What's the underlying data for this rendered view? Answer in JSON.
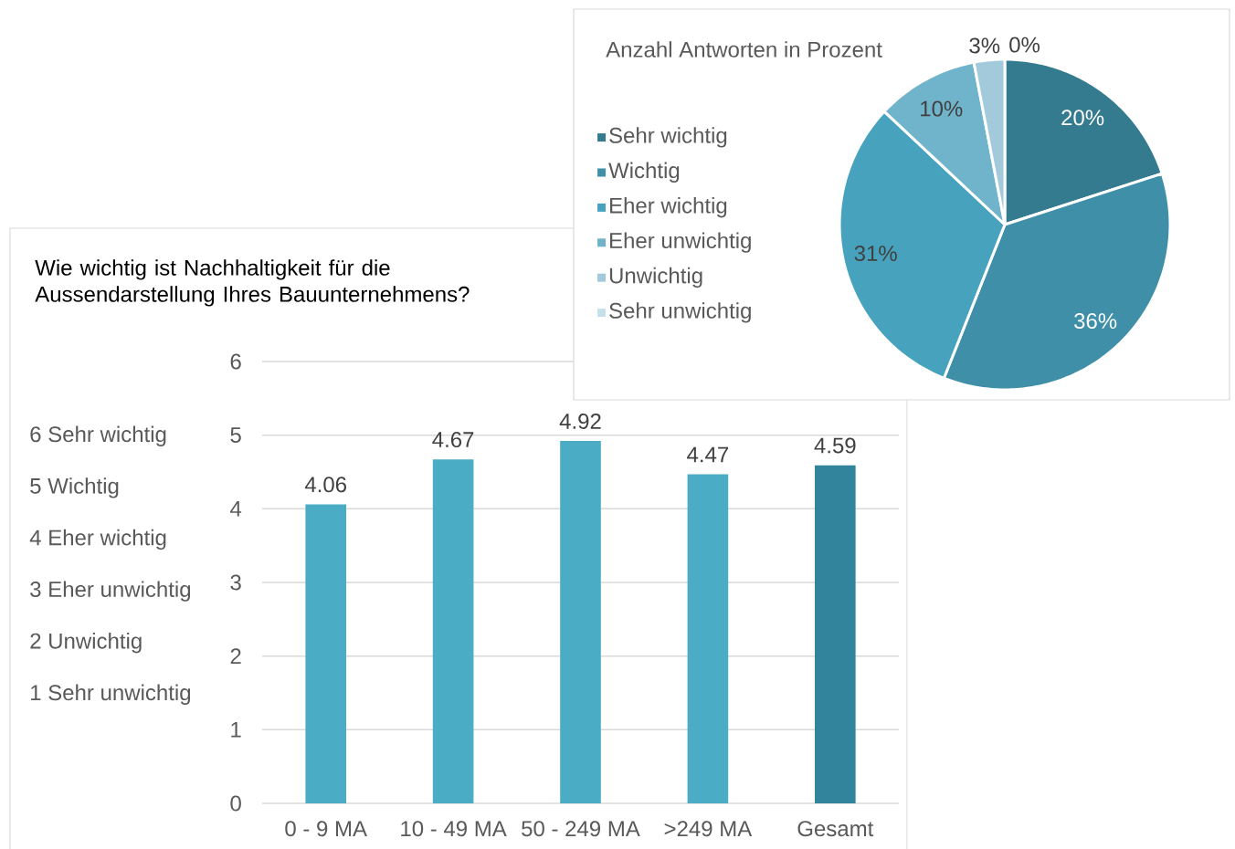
{
  "chart_data": [
    {
      "type": "pie",
      "title": "Anzahl Antworten in Prozent",
      "categories": [
        "Sehr wichtig",
        "Wichtig",
        "Eher wichtig",
        "Eher unwichtig",
        "Unwichtig",
        "Sehr unwichtig"
      ],
      "values": [
        20,
        36,
        31,
        10,
        3,
        0
      ],
      "colors": [
        "#347b8f",
        "#3f8fa8",
        "#47a3bd",
        "#70b4cb",
        "#a2cadb",
        "#c5e0ea"
      ],
      "value_labels": [
        "20%",
        "36%",
        "31%",
        "10%",
        "3%",
        "0%"
      ],
      "legend": "left"
    },
    {
      "type": "bar",
      "title": "Wie wichtig ist Nachhaltigkeit für die Aussendarstellung Ihres Bauunternehmens?",
      "categories": [
        "0 - 9 MA",
        "10 - 49 MA",
        "50 - 249 MA",
        ">249 MA",
        "Gesamt"
      ],
      "values": [
        4.06,
        4.67,
        4.92,
        4.47,
        4.59
      ],
      "colors": [
        "#4bacc6",
        "#4bacc6",
        "#4bacc6",
        "#4bacc6",
        "#31849b"
      ],
      "ylim": [
        0,
        6
      ],
      "yticks": [
        0,
        1,
        2,
        3,
        4,
        5,
        6
      ],
      "grid": "y",
      "data_labels": true,
      "annotations": [
        "6 Sehr wichtig",
        "5 Wichtig",
        "4 Eher wichtig",
        "3 Eher unwichtig",
        "2 Unwichtig",
        "1 Sehr unwichtig"
      ]
    }
  ]
}
